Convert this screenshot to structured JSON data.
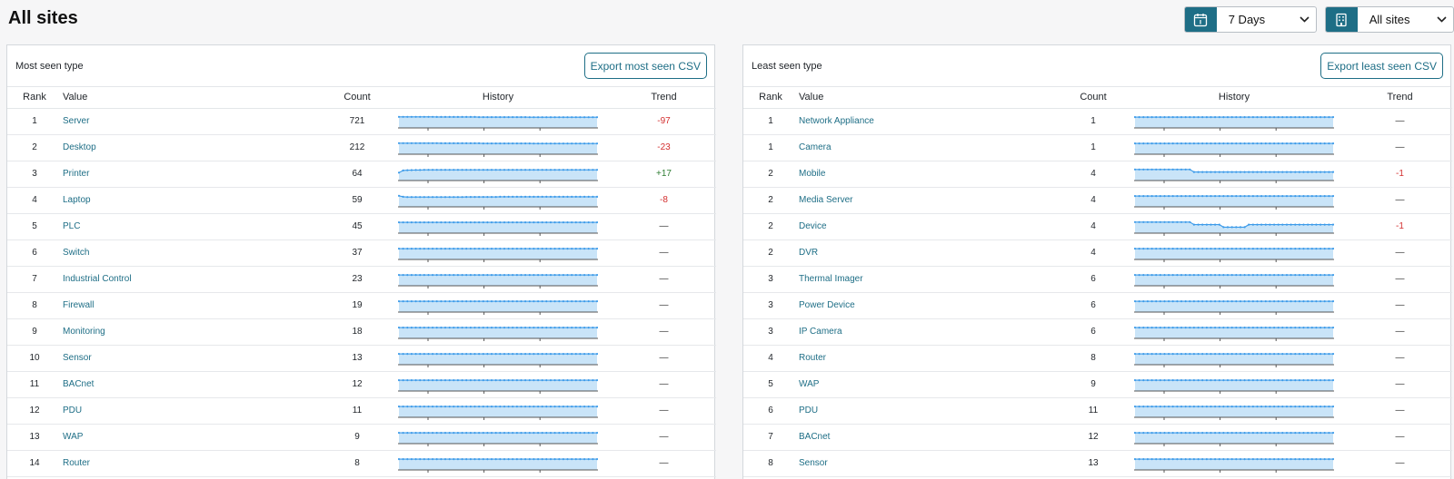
{
  "header": {
    "title": "All sites",
    "date_range": {
      "value": "7 Days",
      "icon": "calendar-icon"
    },
    "site_filter": {
      "value": "All sites",
      "icon": "building-icon"
    }
  },
  "columns": {
    "rank": "Rank",
    "value": "Value",
    "count": "Count",
    "history": "History",
    "trend": "Trend"
  },
  "colors": {
    "accent": "#1e6e86",
    "spark_fill": "#c9e4f8",
    "spark_line": "#3d9be9",
    "negative": "#d32f2f",
    "positive": "#2e7d32"
  },
  "panels": [
    {
      "id": "most",
      "title": "Most seen type",
      "export_label": "Export most seen CSV",
      "rows": [
        {
          "rank": "1",
          "value": "Server",
          "count": "721",
          "trend": "-97",
          "history": [
            0.8,
            0.8,
            0.8,
            0.8,
            0.8,
            0.8,
            0.8,
            0.8,
            0.8,
            0.79,
            0.79,
            0.79,
            0.79,
            0.79,
            0.79,
            0.79,
            0.79,
            0.79,
            0.79,
            0.78,
            0.78,
            0.78,
            0.78,
            0.78,
            0.78,
            0.78,
            0.78,
            0.78,
            0.78,
            0.78,
            0.78,
            0.77,
            0.77,
            0.77,
            0.77,
            0.77,
            0.77,
            0.77,
            0.77,
            0.77,
            0.77,
            0.77,
            0.77,
            0.77,
            0.77,
            0.77,
            0.77,
            0.77
          ]
        },
        {
          "rank": "2",
          "value": "Desktop",
          "count": "212",
          "trend": "-23",
          "history": [
            0.8,
            0.8,
            0.8,
            0.8,
            0.8,
            0.8,
            0.8,
            0.8,
            0.8,
            0.8,
            0.79,
            0.79,
            0.79,
            0.79,
            0.79,
            0.79,
            0.79,
            0.79,
            0.79,
            0.79,
            0.78,
            0.78,
            0.78,
            0.78,
            0.78,
            0.78,
            0.78,
            0.78,
            0.78,
            0.78,
            0.78,
            0.78,
            0.77,
            0.77,
            0.77,
            0.77,
            0.77,
            0.77,
            0.77,
            0.77,
            0.77,
            0.77,
            0.77,
            0.77,
            0.77,
            0.77,
            0.77,
            0.77
          ]
        },
        {
          "rank": "3",
          "value": "Printer",
          "count": "64",
          "trend": "+17",
          "history": [
            0.55,
            0.72,
            0.74,
            0.75,
            0.76,
            0.76,
            0.77,
            0.77,
            0.77,
            0.77,
            0.77,
            0.77,
            0.77,
            0.77,
            0.77,
            0.77,
            0.77,
            0.77,
            0.77,
            0.77,
            0.77,
            0.77,
            0.77,
            0.77,
            0.77,
            0.77,
            0.77,
            0.77,
            0.77,
            0.77,
            0.77,
            0.77,
            0.77,
            0.77,
            0.77,
            0.77,
            0.77,
            0.77,
            0.77,
            0.77,
            0.77,
            0.77,
            0.77,
            0.77,
            0.77,
            0.77,
            0.77,
            0.77
          ]
        },
        {
          "rank": "4",
          "value": "Laptop",
          "count": "59",
          "trend": "-8",
          "history": [
            0.8,
            0.72,
            0.7,
            0.7,
            0.7,
            0.7,
            0.7,
            0.7,
            0.7,
            0.7,
            0.7,
            0.7,
            0.7,
            0.7,
            0.7,
            0.7,
            0.71,
            0.71,
            0.71,
            0.71,
            0.71,
            0.71,
            0.71,
            0.71,
            0.72,
            0.72,
            0.72,
            0.72,
            0.72,
            0.72,
            0.72,
            0.72,
            0.72,
            0.72,
            0.72,
            0.72,
            0.72,
            0.72,
            0.72,
            0.72,
            0.72,
            0.72,
            0.72,
            0.72,
            0.72,
            0.72,
            0.72,
            0.72
          ]
        },
        {
          "rank": "5",
          "value": "PLC",
          "count": "45",
          "trend": "—",
          "history": "flat"
        },
        {
          "rank": "6",
          "value": "Switch",
          "count": "37",
          "trend": "—",
          "history": "flat"
        },
        {
          "rank": "7",
          "value": "Industrial Control",
          "count": "23",
          "trend": "—",
          "history": "flat"
        },
        {
          "rank": "8",
          "value": "Firewall",
          "count": "19",
          "trend": "—",
          "history": "flat"
        },
        {
          "rank": "9",
          "value": "Monitoring",
          "count": "18",
          "trend": "—",
          "history": "flat"
        },
        {
          "rank": "10",
          "value": "Sensor",
          "count": "13",
          "trend": "—",
          "history": "flat"
        },
        {
          "rank": "11",
          "value": "BACnet",
          "count": "12",
          "trend": "—",
          "history": "flat"
        },
        {
          "rank": "12",
          "value": "PDU",
          "count": "11",
          "trend": "—",
          "history": "flat"
        },
        {
          "rank": "13",
          "value": "WAP",
          "count": "9",
          "trend": "—",
          "history": "flat"
        },
        {
          "rank": "14",
          "value": "Router",
          "count": "8",
          "trend": "—",
          "history": "flat"
        }
      ]
    },
    {
      "id": "least",
      "title": "Least seen type",
      "export_label": "Export least seen CSV",
      "rows": [
        {
          "rank": "1",
          "value": "Network Appliance",
          "count": "1",
          "trend": "—",
          "history": "flat"
        },
        {
          "rank": "1",
          "value": "Camera",
          "count": "1",
          "trend": "—",
          "history": "flat"
        },
        {
          "rank": "2",
          "value": "Mobile",
          "count": "4",
          "trend": "-1",
          "history": [
            0.8,
            0.8,
            0.8,
            0.8,
            0.8,
            0.8,
            0.8,
            0.8,
            0.8,
            0.8,
            0.8,
            0.8,
            0.8,
            0.8,
            0.6,
            0.6,
            0.6,
            0.6,
            0.6,
            0.6,
            0.6,
            0.6,
            0.6,
            0.6,
            0.6,
            0.6,
            0.6,
            0.6,
            0.6,
            0.6,
            0.6,
            0.6,
            0.6,
            0.6,
            0.6,
            0.6,
            0.6,
            0.6,
            0.6,
            0.6,
            0.6,
            0.6,
            0.6,
            0.6,
            0.6,
            0.6,
            0.6,
            0.6
          ]
        },
        {
          "rank": "2",
          "value": "Media Server",
          "count": "4",
          "trend": "—",
          "history": "flat"
        },
        {
          "rank": "2",
          "value": "Device",
          "count": "4",
          "trend": "-1",
          "history": [
            0.8,
            0.8,
            0.8,
            0.8,
            0.8,
            0.8,
            0.8,
            0.8,
            0.8,
            0.8,
            0.8,
            0.8,
            0.8,
            0.8,
            0.6,
            0.6,
            0.6,
            0.6,
            0.6,
            0.6,
            0.6,
            0.4,
            0.4,
            0.4,
            0.4,
            0.4,
            0.4,
            0.6,
            0.6,
            0.6,
            0.6,
            0.6,
            0.6,
            0.6,
            0.6,
            0.6,
            0.6,
            0.6,
            0.6,
            0.6,
            0.6,
            0.6,
            0.6,
            0.6,
            0.6,
            0.6,
            0.6,
            0.6
          ]
        },
        {
          "rank": "2",
          "value": "DVR",
          "count": "4",
          "trend": "—",
          "history": "flat"
        },
        {
          "rank": "3",
          "value": "Thermal Imager",
          "count": "6",
          "trend": "—",
          "history": "flat"
        },
        {
          "rank": "3",
          "value": "Power Device",
          "count": "6",
          "trend": "—",
          "history": "flat"
        },
        {
          "rank": "3",
          "value": "IP Camera",
          "count": "6",
          "trend": "—",
          "history": "flat"
        },
        {
          "rank": "4",
          "value": "Router",
          "count": "8",
          "trend": "—",
          "history": "flat"
        },
        {
          "rank": "5",
          "value": "WAP",
          "count": "9",
          "trend": "—",
          "history": "flat"
        },
        {
          "rank": "6",
          "value": "PDU",
          "count": "11",
          "trend": "—",
          "history": "flat"
        },
        {
          "rank": "7",
          "value": "BACnet",
          "count": "12",
          "trend": "—",
          "history": "flat"
        },
        {
          "rank": "8",
          "value": "Sensor",
          "count": "13",
          "trend": "—",
          "history": "flat"
        }
      ]
    }
  ]
}
